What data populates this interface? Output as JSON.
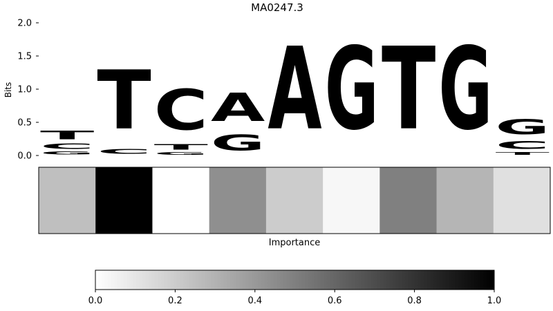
{
  "chart_data": [
    {
      "type": "sequence-logo",
      "title": "MA0247.3",
      "ylabel": "Bits",
      "ylim": [
        0,
        2.0
      ],
      "yticks": [
        "0.0",
        "0.5",
        "1.0",
        "1.5",
        "2.0"
      ],
      "positions": [
        {
          "letters": [
            {
              "base": "G",
              "bits": 0.07
            },
            {
              "base": "C",
              "bits": 0.13
            },
            {
              "base": "T",
              "bits": 0.21
            }
          ]
        },
        {
          "letters": [
            {
              "base": "C",
              "bits": 0.12
            },
            {
              "base": "T",
              "bits": 1.42
            }
          ]
        },
        {
          "letters": [
            {
              "base": "G",
              "bits": 0.06
            },
            {
              "base": "T",
              "bits": 0.13
            },
            {
              "base": "C",
              "bits": 0.98
            }
          ]
        },
        {
          "letters": [
            {
              "base": "G",
              "bits": 0.38
            },
            {
              "base": "A",
              "bits": 0.68
            }
          ]
        },
        {
          "letters": [
            {
              "base": "A",
              "bits": 2.0
            }
          ]
        },
        {
          "letters": [
            {
              "base": "G",
              "bits": 2.0
            }
          ]
        },
        {
          "letters": [
            {
              "base": "T",
              "bits": 2.0
            }
          ]
        },
        {
          "letters": [
            {
              "base": "G",
              "bits": 2.0
            }
          ]
        },
        {
          "letters": [
            {
              "base": "T",
              "bits": 0.06
            },
            {
              "base": "C",
              "bits": 0.19
            },
            {
              "base": "G",
              "bits": 0.36
            }
          ]
        }
      ],
      "base_colors": {
        "A": "#4da34d",
        "C": "#4d4dff",
        "G": "#ffbf4d",
        "T": "#ff4d4d"
      }
    },
    {
      "type": "heatmap",
      "xlabel": "Importance",
      "values": [
        0.25,
        1.0,
        0.0,
        0.44,
        0.2,
        0.03,
        0.5,
        0.29,
        0.12
      ],
      "colormap": "greys"
    },
    {
      "type": "colorbar",
      "range": [
        0.0,
        1.0
      ],
      "ticks": [
        "0.0",
        "0.2",
        "0.4",
        "0.6",
        "0.8",
        "1.0"
      ]
    }
  ]
}
